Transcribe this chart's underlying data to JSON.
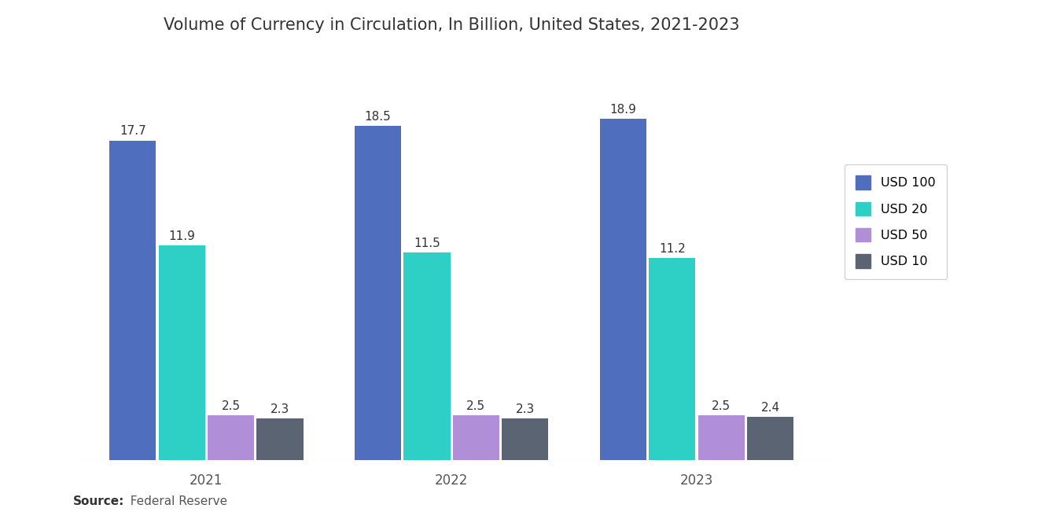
{
  "title": "Volume of Currency in Circulation, In Billion, United States, 2021-2023",
  "years": [
    "2021",
    "2022",
    "2023"
  ],
  "series": {
    "USD 100": [
      17.7,
      18.5,
      18.9
    ],
    "USD 20": [
      11.9,
      11.5,
      11.2
    ],
    "USD 50": [
      2.5,
      2.5,
      2.5
    ],
    "USD 10": [
      2.3,
      2.3,
      2.4
    ]
  },
  "colors": {
    "USD 100": "#4F6EBD",
    "USD 20": "#2ECFC4",
    "USD 50": "#B08FD8",
    "USD 10": "#5A6472"
  },
  "source_bold": "Source:",
  "source_normal": "  Federal Reserve",
  "background_color": "#FFFFFF",
  "ylim": [
    0,
    22
  ],
  "group_centers": [
    1.0,
    3.0,
    5.0
  ],
  "bar_width": 0.38,
  "bar_gap": 0.02,
  "title_fontsize": 15,
  "label_fontsize": 11,
  "tick_fontsize": 12,
  "legend_fontsize": 11.5,
  "source_fontsize": 11
}
